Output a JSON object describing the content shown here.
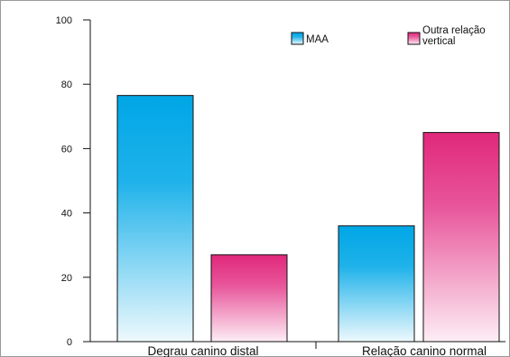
{
  "chart_data": {
    "type": "bar",
    "title": "",
    "xlabel": "",
    "ylabel": "",
    "categories": [
      "Degrau canino distal",
      "Relação canino normal"
    ],
    "series": [
      {
        "name": "MAA",
        "values": [
          76.5,
          36
        ],
        "color": "#00a6e6"
      },
      {
        "name": "Outra relação vertical",
        "values": [
          27,
          65
        ],
        "color": "#e0287a"
      }
    ],
    "ylim": [
      0,
      100
    ],
    "yticks": [
      0,
      20,
      40,
      60,
      80,
      100
    ],
    "grid": false,
    "legend_position": "top-right"
  }
}
